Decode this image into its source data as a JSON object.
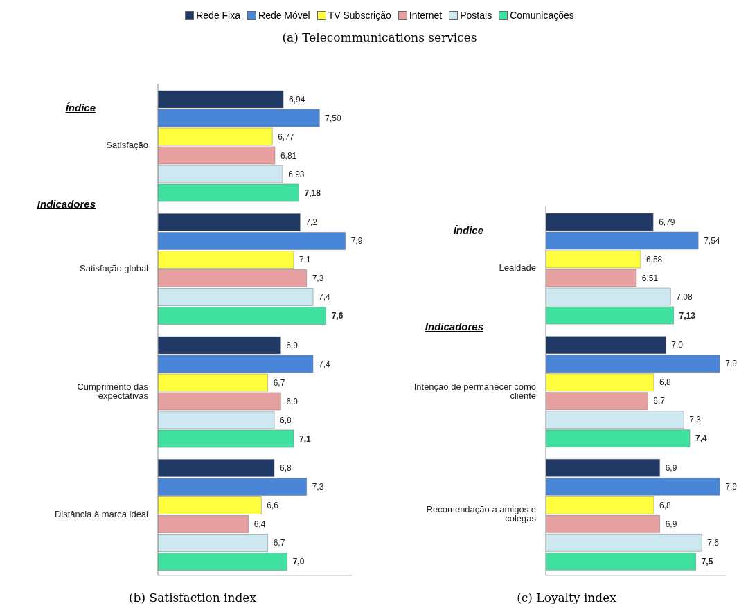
{
  "chart_data": [
    {
      "type": "bar",
      "orientation": "horizontal",
      "title": "(b) Satisfaction index",
      "subtitle": "(a) Telecommunications services",
      "legend": "top",
      "data_labels": false,
      "xlim": [
        5,
        8
      ],
      "tick_labels": "y",
      "annotations": [
        "Índice",
        "Indicadores"
      ],
      "categories": [
        "Satisfação",
        "Satisfação global",
        "Cumprimento das expectativas",
        "Distância à marca ideal"
      ],
      "series": [
        {
          "name": "Rede Fixa",
          "color": "#1f3864",
          "values": [
            6.94,
            7.2,
            6.9,
            6.8
          ],
          "value_labels": [
            "6,94",
            "7,2",
            "6,9",
            "6,8"
          ]
        },
        {
          "name": "Rede Móvel",
          "color": "#4a86d8",
          "values": [
            7.5,
            7.9,
            7.4,
            7.3
          ],
          "value_labels": [
            "7,50",
            "7,9",
            "7,4",
            "7,3"
          ]
        },
        {
          "name": "TV Subscrição",
          "color": "#ffff40",
          "values": [
            6.77,
            7.1,
            6.7,
            6.6
          ],
          "value_labels": [
            "6,77",
            "7,1",
            "6,7",
            "6,6"
          ]
        },
        {
          "name": "Internet",
          "color": "#e6a0a0",
          "values": [
            6.81,
            7.3,
            6.9,
            6.4
          ],
          "value_labels": [
            "6,81",
            "7,3",
            "6,9",
            "6,4"
          ]
        },
        {
          "name": "Postais",
          "color": "#cde8f0",
          "values": [
            6.93,
            7.4,
            6.8,
            6.7
          ],
          "value_labels": [
            "6,93",
            "7,4",
            "6,8",
            "6,7"
          ]
        },
        {
          "name": "Comunicações",
          "color": "#40e0a0",
          "values": [
            7.18,
            7.6,
            7.1,
            7.0
          ],
          "value_labels": [
            "7,18",
            "7,6",
            "7,1",
            "7,0"
          ]
        }
      ]
    },
    {
      "type": "bar",
      "orientation": "horizontal",
      "title": "(c) Loyalty index",
      "legend": "top",
      "data_labels": false,
      "xlim": [
        5,
        8
      ],
      "tick_labels": "y",
      "annotations": [
        "Índice",
        "Indicadores"
      ],
      "categories": [
        "Lealdade",
        "Intenção de permanecer como cliente",
        "Recomendação a amigos e colegas"
      ],
      "series": [
        {
          "name": "Rede Fixa",
          "color": "#1f3864",
          "values": [
            6.79,
            7.0,
            6.9
          ],
          "value_labels": [
            "6,79",
            "7,0",
            "6,9"
          ]
        },
        {
          "name": "Rede Móvel",
          "color": "#4a86d8",
          "values": [
            7.54,
            7.9,
            7.9
          ],
          "value_labels": [
            "7,54",
            "7,9",
            "7,9"
          ]
        },
        {
          "name": "TV Subscrição",
          "color": "#ffff40",
          "values": [
            6.58,
            6.8,
            6.8
          ],
          "value_labels": [
            "6,58",
            "6,8",
            "6,8"
          ]
        },
        {
          "name": "Internet",
          "color": "#e6a0a0",
          "values": [
            6.51,
            6.7,
            6.9
          ],
          "value_labels": [
            "6,51",
            "6,7",
            "6,9"
          ]
        },
        {
          "name": "Postais",
          "color": "#cde8f0",
          "values": [
            7.08,
            7.3,
            7.6
          ],
          "value_labels": [
            "7,08",
            "7,3",
            "7,6"
          ]
        },
        {
          "name": "Comunicações",
          "color": "#40e0a0",
          "values": [
            7.13,
            7.4,
            7.5
          ],
          "value_labels": [
            "7,13",
            "7,4",
            "7,5"
          ]
        }
      ]
    }
  ]
}
